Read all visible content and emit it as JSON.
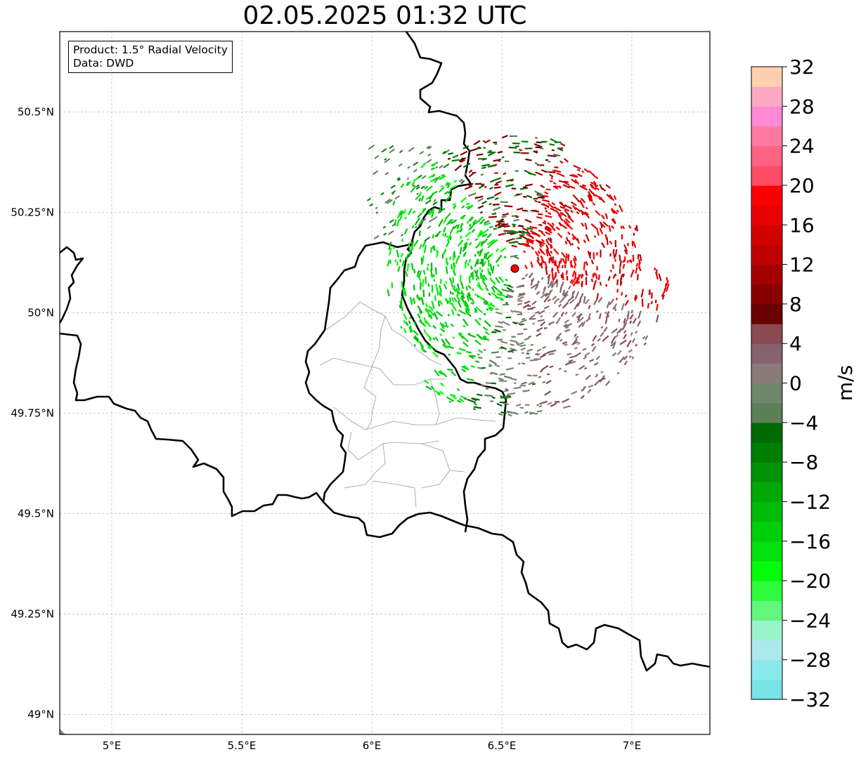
{
  "title": "02.05.2025 01:32 UTC",
  "info": {
    "product": "Product: 1.5° Radial Velocity",
    "data": "Data: DWD"
  },
  "map": {
    "lon_range": [
      4.8,
      7.3
    ],
    "lat_range": [
      48.95,
      50.7
    ],
    "lon_ticks": [
      {
        "value": 5.0,
        "label": "5°E"
      },
      {
        "value": 5.5,
        "label": "5.5°E"
      },
      {
        "value": 6.0,
        "label": "6°E"
      },
      {
        "value": 6.5,
        "label": "6.5°E"
      },
      {
        "value": 7.0,
        "label": "7°E"
      }
    ],
    "lat_ticks": [
      {
        "value": 49.0,
        "label": "49°N"
      },
      {
        "value": 49.25,
        "label": "49.25°N"
      },
      {
        "value": 49.5,
        "label": "49.5°N"
      },
      {
        "value": 49.75,
        "label": "49.75°N"
      },
      {
        "value": 50.0,
        "label": "50°N"
      },
      {
        "value": 50.25,
        "label": "50.25°N"
      },
      {
        "value": 50.5,
        "label": "50.5°N"
      }
    ],
    "grid": true,
    "radar_site": {
      "lon": 6.55,
      "lat": 50.11,
      "color": "#ff0000"
    }
  },
  "colorbar": {
    "label": "m/s",
    "min": -32,
    "max": 32,
    "tick_values": [
      -32,
      -28,
      -24,
      -20,
      -16,
      -12,
      -8,
      -4,
      0,
      4,
      8,
      12,
      16,
      20,
      24,
      28,
      32
    ],
    "tick_labels": [
      "−32",
      "−28",
      "−24",
      "−20",
      "−16",
      "−12",
      "−8",
      "−4",
      "0",
      "4",
      "8",
      "12",
      "16",
      "20",
      "24",
      "28",
      "32"
    ],
    "colors": [
      "#76e3e6",
      "#8ae9ea",
      "#abe9ee",
      "#9af4cb",
      "#63f77e",
      "#2dfb3b",
      "#03fb0c",
      "#01e10d",
      "#00ce0a",
      "#00bb08",
      "#00a806",
      "#019305",
      "#007f03",
      "#026a02",
      "#5b8057",
      "#6f876b",
      "#8a7b78",
      "#87636f",
      "#8b4a51",
      "#690101",
      "#890000",
      "#a40000",
      "#bc0000",
      "#d30000",
      "#e80000",
      "#fb0000",
      "#fe4c62",
      "#ff6384",
      "#ff7aa2",
      "#ff89d2",
      "#ffa8c6",
      "#ffd0b0"
    ]
  }
}
